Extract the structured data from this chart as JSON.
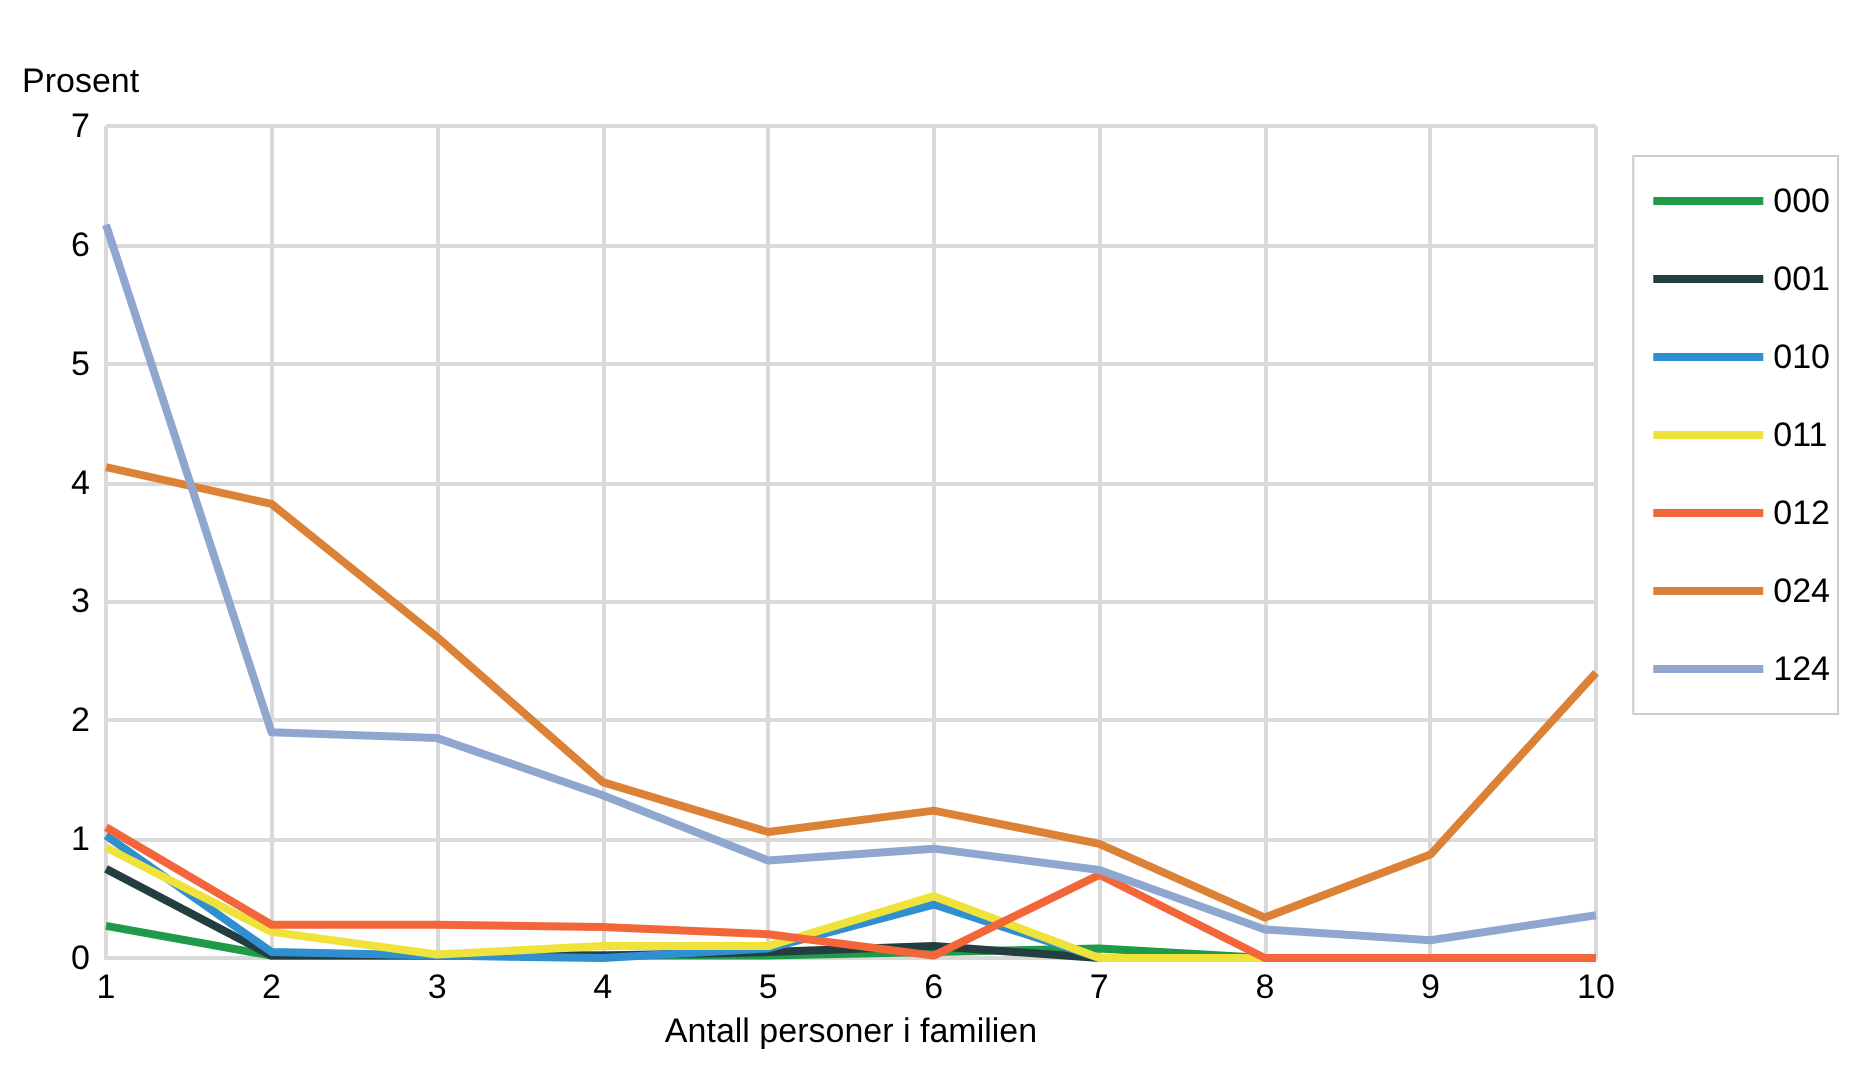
{
  "chart_data": {
    "type": "line",
    "xlabel": "Antall personer i familien",
    "ylabel": "Prosent",
    "categories": [
      "1",
      "2",
      "3",
      "4",
      "5",
      "6",
      "7",
      "8",
      "9",
      "10"
    ],
    "series": [
      {
        "name": "000",
        "color": "#1e9a48",
        "values": [
          0.27,
          0.02,
          0.02,
          0.02,
          0.02,
          0.05,
          0.08,
          0,
          0,
          0
        ]
      },
      {
        "name": "001",
        "color": "#243d40",
        "values": [
          0.75,
          0.02,
          0.02,
          0.02,
          0.05,
          0.1,
          0,
          0,
          null,
          null
        ]
      },
      {
        "name": "010",
        "color": "#2f8fd0",
        "values": [
          1.03,
          0.05,
          0.02,
          0,
          0.08,
          0.45,
          0,
          0,
          null,
          null
        ]
      },
      {
        "name": "011",
        "color": "#efe23a",
        "values": [
          0.93,
          0.22,
          0.03,
          0.1,
          0.1,
          0.52,
          0,
          0,
          0,
          0
        ]
      },
      {
        "name": "012",
        "color": "#f2663a",
        "values": [
          1.1,
          0.28,
          0.28,
          0.26,
          0.2,
          0.02,
          0.7,
          0,
          0,
          0
        ]
      },
      {
        "name": "024",
        "color": "#dc8236",
        "values": [
          4.13,
          3.82,
          2.7,
          1.48,
          1.06,
          1.24,
          0.96,
          0.34,
          0.87,
          2.4
        ]
      },
      {
        "name": "124",
        "color": "#8fa7cf",
        "values": [
          6.17,
          1.9,
          1.85,
          1.37,
          0.82,
          0.92,
          0.74,
          0.24,
          0.15,
          0.36
        ]
      }
    ],
    "ylim": [
      0,
      7
    ],
    "yticks": [
      0,
      1,
      2,
      3,
      4,
      5,
      6,
      7
    ],
    "grid": true,
    "legend": "right",
    "marker": "none",
    "line_style": "solid"
  }
}
